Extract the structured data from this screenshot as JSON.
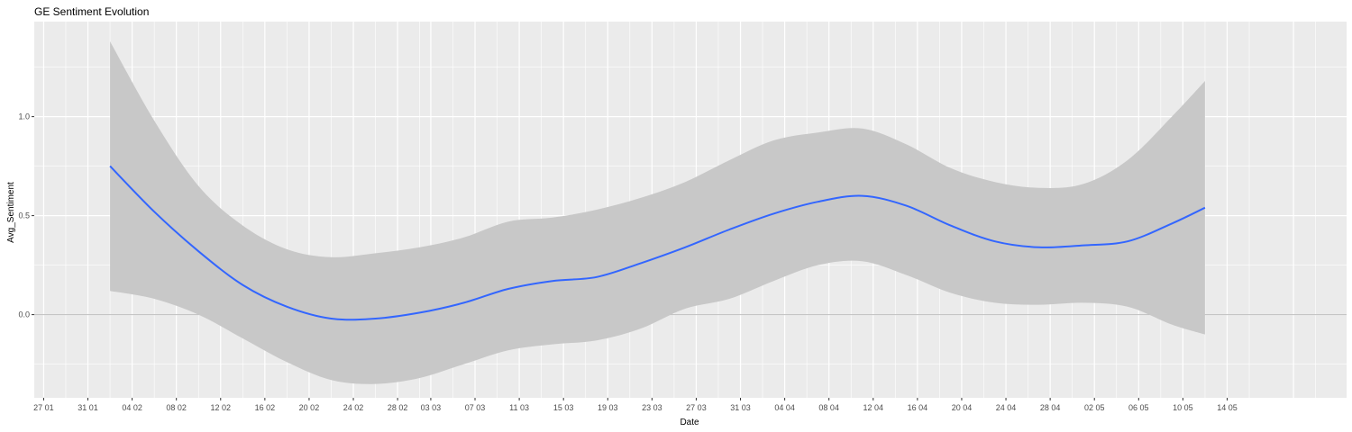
{
  "chart_data": {
    "type": "line",
    "title": "GE Sentiment Evolution",
    "xlabel": "Date",
    "ylabel": "Avg_Sentiment",
    "x_ticks": [
      "27 01",
      "31 01",
      "04 02",
      "08 02",
      "12 02",
      "16 02",
      "20 02",
      "24 02",
      "28 02",
      "03 03",
      "07 03",
      "11 03",
      "15 03",
      "19 03",
      "23 03",
      "27 03",
      "31 03",
      "04 04",
      "08 04",
      "12 04",
      "16 04",
      "20 04",
      "24 04",
      "28 04",
      "02 05",
      "06 05",
      "10 05",
      "14 05"
    ],
    "y_ticks": [
      "0.0",
      "0.5",
      "1.0"
    ],
    "ylim": [
      -0.42,
      1.48
    ],
    "reference_line_y": 0.0,
    "grid": true,
    "colors": {
      "panel": "#ebebeb",
      "grid": "#ffffff",
      "band": "#c8c8c8",
      "line": "#3366ff",
      "zero_line": "#bdbdbd"
    },
    "series": [
      {
        "x": [
          "02 02",
          "06 02",
          "10 02",
          "14 02",
          "18 02",
          "22 02",
          "26 02",
          "02 03",
          "06 03",
          "10 03",
          "14 03",
          "18 03",
          "22 03",
          "26 03",
          "30 03",
          "03 04",
          "07 04",
          "11 04",
          "15 04",
          "19 04",
          "23 04",
          "27 04",
          "01 05",
          "05 05",
          "09 05",
          "12 05"
        ],
        "y": [
          0.75,
          0.52,
          0.32,
          0.15,
          0.04,
          -0.02,
          -0.02,
          0.01,
          0.06,
          0.13,
          0.17,
          0.19,
          0.26,
          0.34,
          0.43,
          0.51,
          0.57,
          0.6,
          0.55,
          0.45,
          0.37,
          0.34,
          0.35,
          0.37,
          0.46,
          0.54
        ],
        "ymin": [
          0.12,
          0.08,
          0.0,
          -0.12,
          -0.24,
          -0.33,
          -0.35,
          -0.32,
          -0.25,
          -0.18,
          -0.15,
          -0.13,
          -0.07,
          0.03,
          0.08,
          0.17,
          0.25,
          0.27,
          0.2,
          0.11,
          0.06,
          0.05,
          0.06,
          0.04,
          -0.05,
          -0.1
        ],
        "ymax": [
          1.38,
          0.98,
          0.65,
          0.45,
          0.33,
          0.29,
          0.31,
          0.34,
          0.39,
          0.47,
          0.49,
          0.53,
          0.59,
          0.67,
          0.78,
          0.88,
          0.92,
          0.94,
          0.86,
          0.74,
          0.67,
          0.64,
          0.66,
          0.78,
          1.0,
          1.18
        ]
      }
    ]
  }
}
